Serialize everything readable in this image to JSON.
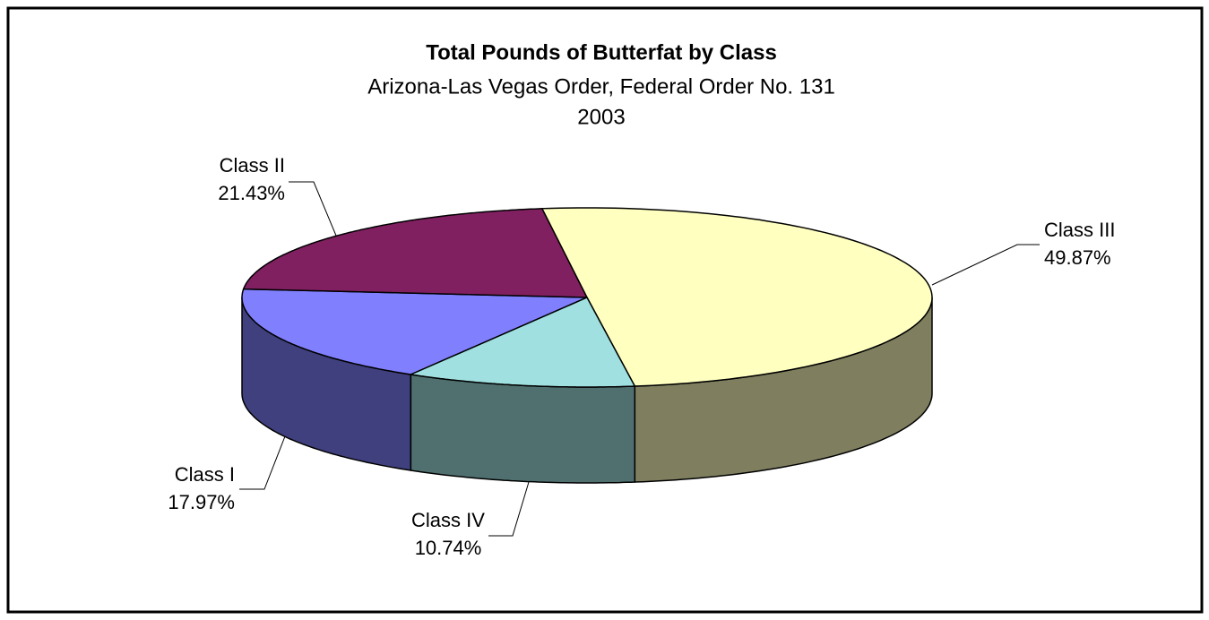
{
  "chart_data": {
    "type": "pie",
    "title": "Total Pounds of Butterfat by Class",
    "subtitle": [
      "Arizona-Las Vegas Order, Federal Order No. 131",
      "2003"
    ],
    "categories": [
      "Class I",
      "Class II",
      "Class III",
      "Class IV"
    ],
    "values": [
      17.97,
      21.43,
      49.87,
      10.74
    ],
    "value_labels": [
      "17.97%",
      "21.43%",
      "49.87%",
      "10.74%"
    ],
    "colors": [
      "#8080ff",
      "#802060",
      "#ffffc0",
      "#a0e0e0"
    ]
  }
}
